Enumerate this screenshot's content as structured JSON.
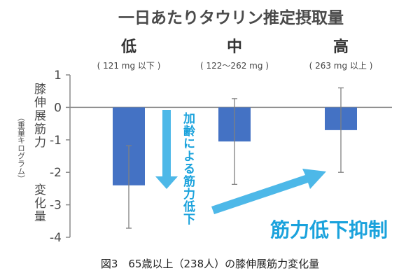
{
  "chart_data": {
    "type": "bar",
    "title": "一日あたりタウリン推定摂取量",
    "categories": [
      {
        "name": "低",
        "range": "( 121 mg 以下 )"
      },
      {
        "name": "中",
        "range": "( 122〜262 mg )"
      },
      {
        "name": "高",
        "range": "( 263 mg 以上 )"
      }
    ],
    "values": [
      -2.4,
      -1.05,
      -0.7
    ],
    "error_low": [
      -3.72,
      -2.37,
      -2.0
    ],
    "error_high": [
      -1.18,
      0.27,
      0.6
    ],
    "ylim": [
      -4,
      1
    ],
    "yticks": [
      1,
      0,
      -1,
      -2,
      -3,
      -4
    ],
    "ytick_labels": [
      "1",
      "0",
      "-1",
      "-2",
      "-3",
      "-4"
    ],
    "ylabel_main": "膝伸展筋力",
    "ylabel_unit": "（重量キログラム）",
    "ylabel_tail": "変化量",
    "colors": {
      "bar": "#4472c4",
      "error": "#808080",
      "axis": "#8a8a8a",
      "arrow": "#4db8e8",
      "annotation": "#1aa2dc"
    },
    "annotations": {
      "down_arrow_label": "加齢による筋力低下",
      "up_arrow_label": "筋力低下抑制"
    }
  },
  "caption": "図3　65歳以上（238人）の膝伸展筋力変化量"
}
